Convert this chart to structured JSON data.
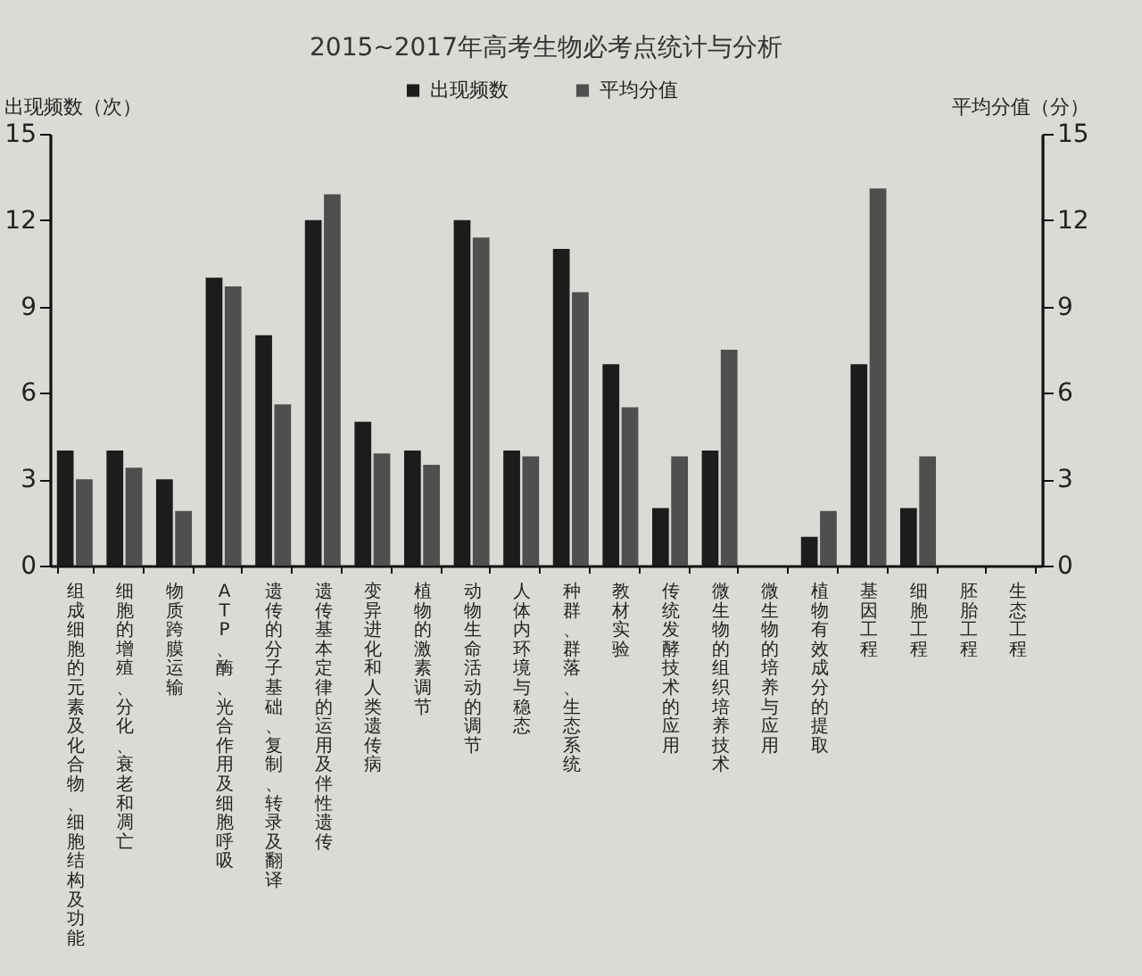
{
  "chart_data": {
    "type": "bar",
    "title": "2015~2017年高考生物必考点统计与分析",
    "categories": [
      "组成细胞的元素及化合物、细胞结构及功能",
      "细胞的增殖、分化、衰老和凋亡",
      "物质跨膜运输",
      "ATP、酶、光合作用及细胞呼吸",
      "遗传的分子基础、复制、转录及翻译",
      "遗传基本定律的运用及伴性遗传",
      "变异进化和人类遗传病",
      "植物的激素调节",
      "动物生命活动的调节",
      "人体内环境与稳态",
      "种群、群落、生态系统",
      "教材实验",
      "传统发酵技术的应用",
      "微生物的组织培养技术",
      "微生物的培养与应用",
      "植物有效成分的提取",
      "基因工程",
      "细胞工程",
      "胚胎工程",
      "生态工程"
    ],
    "series": [
      {
        "name": "出现频数",
        "color": "#1c1c1c",
        "values": [
          4,
          4,
          3,
          10,
          8,
          12,
          5,
          4,
          12,
          4,
          11,
          7,
          2,
          4,
          0,
          1,
          7,
          2,
          0,
          0
        ]
      },
      {
        "name": "平均分值",
        "color": "#4f4f4f",
        "axis": "y2",
        "values": [
          3,
          3.4,
          1.9,
          9.7,
          5.6,
          12.9,
          3.9,
          3.5,
          11.4,
          3.8,
          9.5,
          5.5,
          3.8,
          7.5,
          0,
          1.9,
          13.1,
          3.8,
          0,
          0
        ]
      }
    ],
    "ylabel": "出现频数（次）",
    "y2label": "平均分值（分）",
    "ylim": [
      0,
      15
    ],
    "yticks": [
      0,
      3,
      6,
      9,
      12,
      15
    ],
    "y2lim": [
      0,
      15
    ],
    "y2ticks": [
      0,
      3,
      6,
      9,
      12,
      15
    ],
    "legend": "top"
  }
}
